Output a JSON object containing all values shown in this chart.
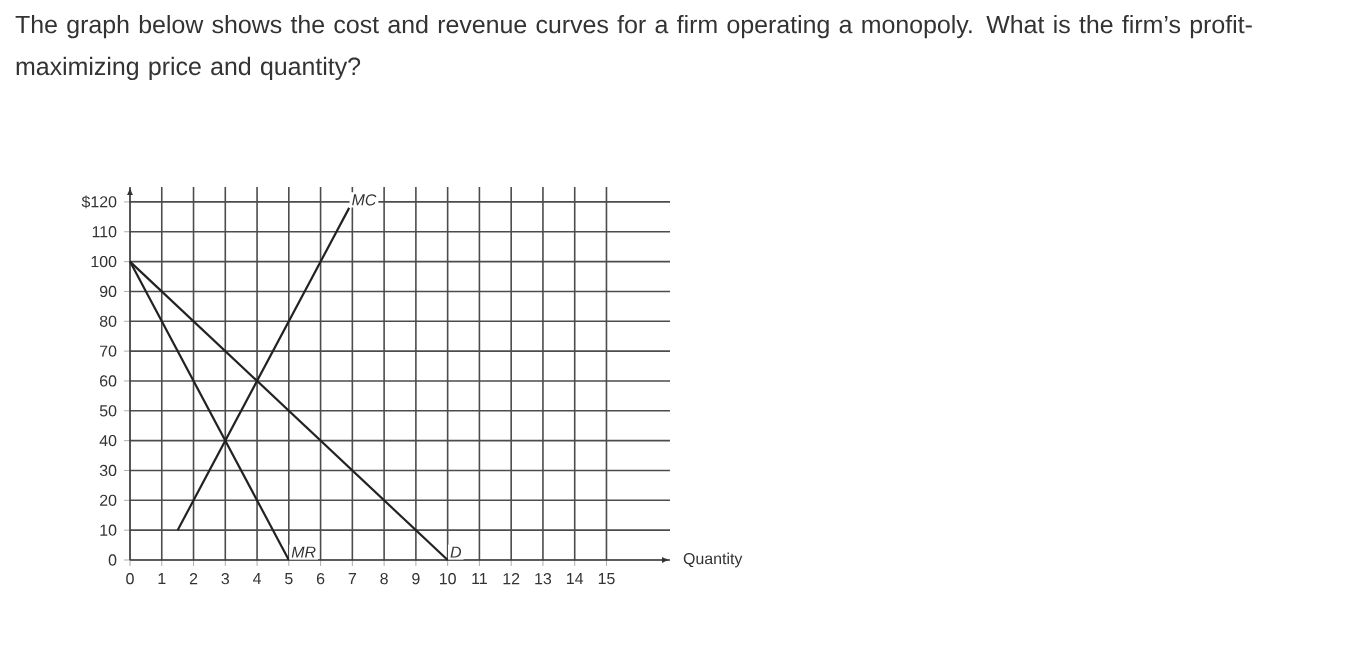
{
  "chart_data": {
    "type": "line",
    "title": "The graph below shows the cost and revenue curves for a firm operating a monopoly. What is the firm’s profit-maximizing price and quantity?",
    "xlabel": "Quantity",
    "series": [
      {
        "name": "MC",
        "color": "#222222",
        "x": [
          1.5,
          6.9
        ],
        "values": [
          10,
          118
        ]
      },
      {
        "name": "MR",
        "color": "#222222",
        "x": [
          0,
          5
        ],
        "values": [
          100,
          0
        ]
      },
      {
        "name": "D",
        "color": "#222222",
        "x": [
          0,
          10
        ],
        "values": [
          100,
          0
        ]
      }
    ],
    "xlim": [
      0,
      17
    ],
    "ylim": [
      0,
      125
    ],
    "xticks": [
      0,
      1,
      2,
      3,
      4,
      5,
      6,
      7,
      8,
      9,
      10,
      11,
      12,
      13,
      14,
      15
    ],
    "yticks": [
      0,
      10,
      20,
      30,
      40,
      50,
      60,
      70,
      80,
      90,
      100,
      110,
      {
        "value": 120,
        "label": "$120"
      }
    ],
    "grid": true,
    "legend": false,
    "marker": "none",
    "line_style": "solid"
  }
}
